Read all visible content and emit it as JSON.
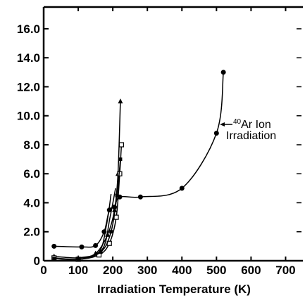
{
  "chart_data": {
    "type": "line",
    "xlabel": "Irradiation Temperature (K)",
    "ylabel": "",
    "xlim": [
      0,
      750
    ],
    "ylim": [
      0,
      17.5
    ],
    "xticks": [
      0,
      100,
      200,
      300,
      400,
      500,
      600,
      700
    ],
    "xtick_labels": [
      "0",
      "100",
      "200",
      "300",
      "400",
      "500",
      "600",
      "700"
    ],
    "yticks": [
      0,
      2,
      4,
      6,
      8,
      10,
      12,
      14,
      16
    ],
    "ytick_labels": [
      "0",
      "2.0",
      "4.0",
      "6.0",
      "8.0",
      "10.0",
      "12.0",
      "14.0",
      "16.0"
    ],
    "grid": false,
    "annotations": [
      {
        "label_sup": "40",
        "line1": "Ar Ion",
        "line2": "Irradiation"
      }
    ],
    "series": [
      {
        "marker": "circle",
        "points": [
          [
            30,
            1.0
          ],
          [
            110,
            0.95
          ],
          [
            150,
            1.05
          ],
          [
            175,
            2.0
          ],
          [
            190,
            3.5
          ],
          [
            205,
            3.7
          ],
          [
            220,
            4.4
          ],
          [
            280,
            4.4
          ],
          [
            400,
            5.0
          ],
          [
            500,
            8.8
          ],
          [
            520,
            13.0
          ]
        ]
      },
      {
        "marker": "triangle",
        "points": [
          [
            30,
            0.3
          ],
          [
            100,
            0.2
          ],
          [
            150,
            0.5
          ],
          [
            185,
            1.8
          ],
          [
            205,
            3.5
          ],
          [
            215,
            6.0
          ],
          [
            222,
            11.0
          ]
        ]
      },
      {
        "marker": "square-open",
        "points": [
          [
            30,
            0.2
          ],
          [
            100,
            0.1
          ],
          [
            160,
            0.4
          ],
          [
            190,
            1.2
          ],
          [
            210,
            3.0
          ],
          [
            220,
            6.0
          ],
          [
            225,
            8.0
          ]
        ]
      },
      {
        "marker": "square-filled",
        "points": [
          [
            30,
            0.15
          ],
          [
            100,
            0.1
          ],
          [
            165,
            0.6
          ],
          [
            195,
            2.0
          ],
          [
            212,
            4.5
          ],
          [
            222,
            7.0
          ]
        ]
      },
      {
        "marker": "none",
        "points": [
          [
            100,
            0.2
          ],
          [
            160,
            0.6
          ],
          [
            182,
            2.5
          ],
          [
            195,
            4.6
          ]
        ]
      },
      {
        "marker": "none",
        "points": [
          [
            110,
            0.1
          ],
          [
            170,
            0.8
          ],
          [
            192,
            3.0
          ],
          [
            208,
            5.0
          ]
        ]
      }
    ]
  }
}
